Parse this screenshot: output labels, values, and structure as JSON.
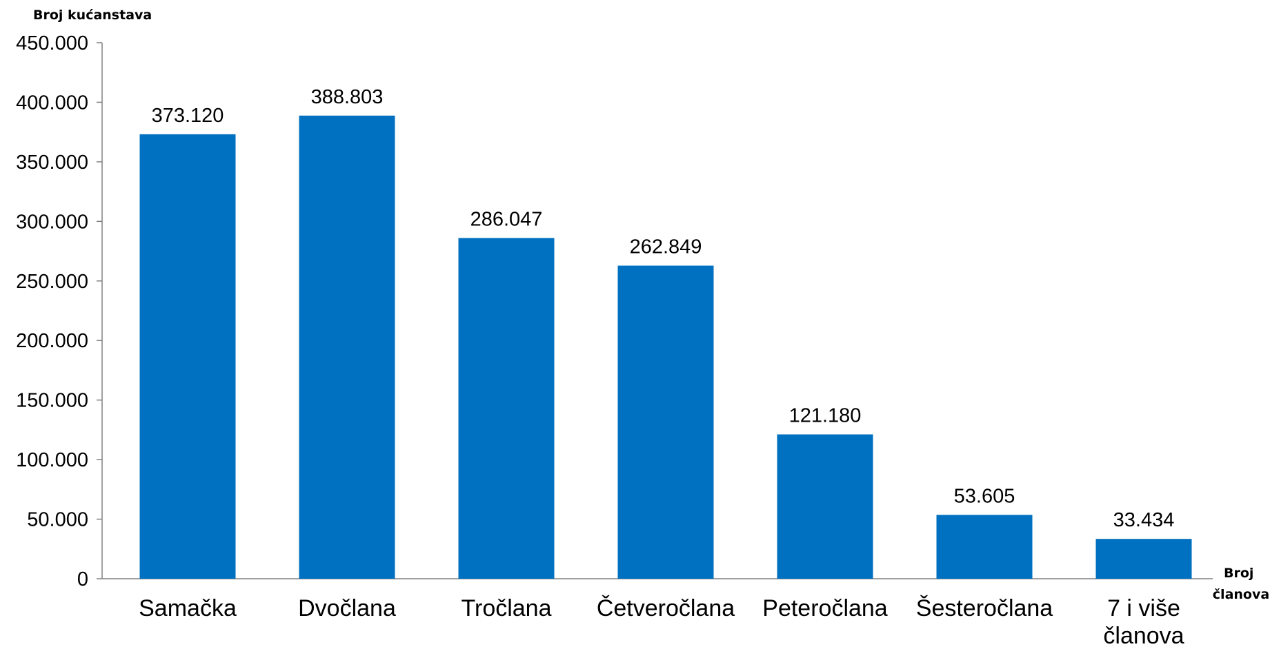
{
  "chart_data": {
    "type": "bar",
    "ylabel": "Broj kućanstava",
    "xlabel_lines": [
      "Broj",
      "članova"
    ],
    "categories": [
      [
        "Samačka"
      ],
      [
        "Dvočlana"
      ],
      [
        "Tročlana"
      ],
      [
        "Četveročlana"
      ],
      [
        "Peteročlana"
      ],
      [
        "Šesteročlana"
      ],
      [
        "7 i više",
        "članova"
      ]
    ],
    "values": [
      373120,
      388803,
      286047,
      262849,
      121180,
      53605,
      33434
    ],
    "value_labels": [
      "373.120",
      "388.803",
      "286.047",
      "262.849",
      "121.180",
      "53.605",
      "33.434"
    ],
    "ylim": [
      0,
      450000
    ],
    "yticks": [
      0,
      50000,
      100000,
      150000,
      200000,
      250000,
      300000,
      350000,
      400000,
      450000
    ],
    "ytick_labels": [
      "0",
      "50.000",
      "100.000",
      "150.000",
      "200.000",
      "250.000",
      "300.000",
      "350.000",
      "400.000",
      "450.000"
    ],
    "grid": false,
    "colors": {
      "bar": "#0070C0",
      "axis": "#808080"
    }
  }
}
